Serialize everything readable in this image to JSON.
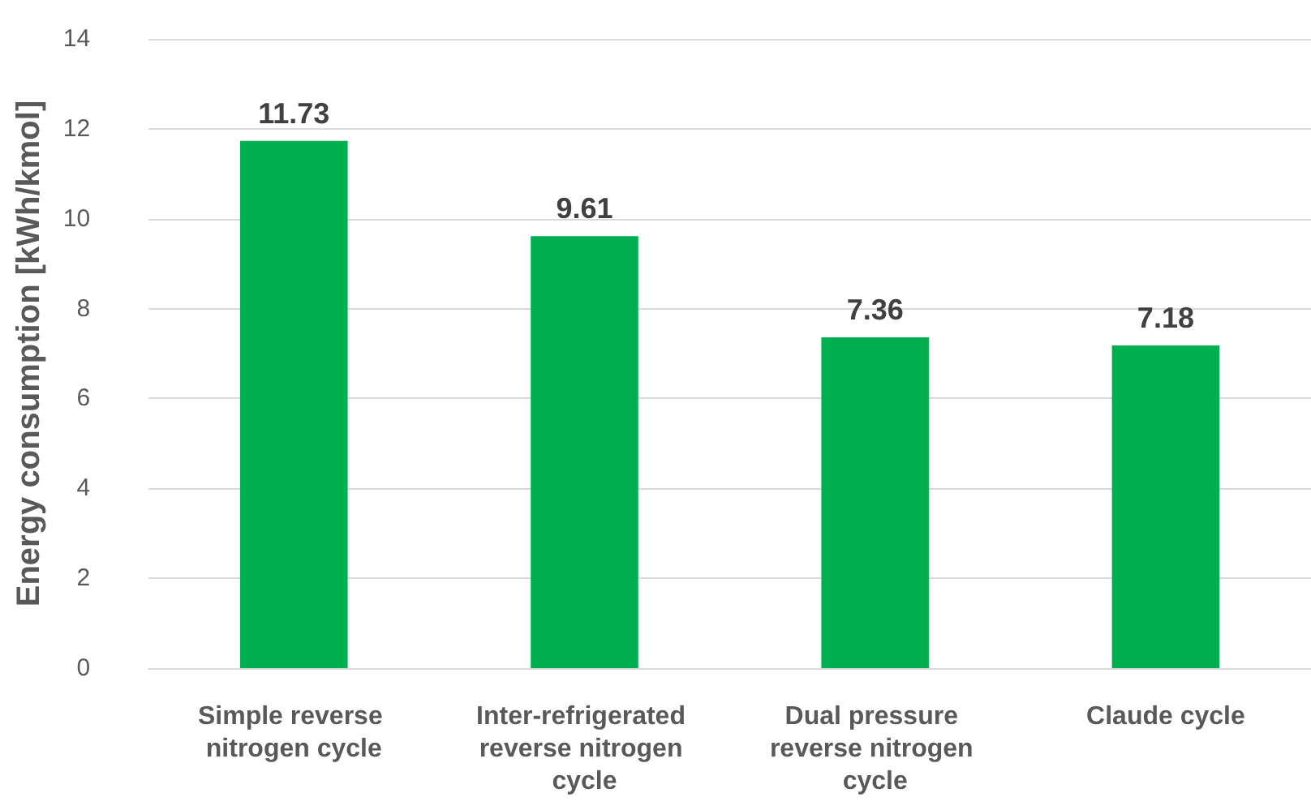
{
  "chart_data": {
    "type": "bar",
    "ylabel": "Energy consumption [kWh/kmol]",
    "categories": [
      "Simple reverse nitrogen cycle",
      "Inter-refrigerated reverse nitrogen cycle",
      "Dual pressure reverse nitrogen cycle",
      "Claude cycle"
    ],
    "values": [
      11.73,
      9.61,
      7.36,
      7.18
    ],
    "color": "#00b050",
    "ylim": [
      0,
      14
    ],
    "yticks": [
      0,
      2,
      4,
      6,
      8,
      10,
      12,
      14
    ],
    "grid": "y",
    "data_labels": true
  }
}
